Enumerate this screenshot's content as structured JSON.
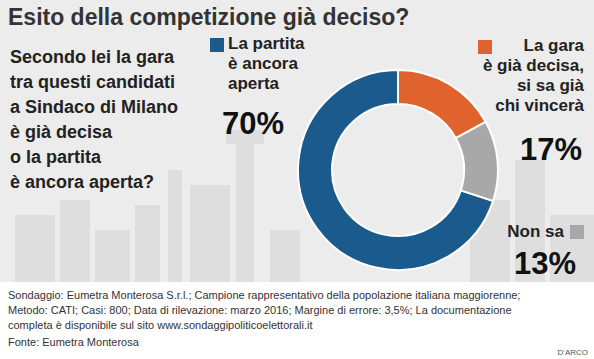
{
  "chart_data": {
    "type": "pie",
    "title": "Esito della competizione già deciso?",
    "subtitle": "Secondo lei la gara\ntra questi candidati\na Sindaco di Milano\nè già decisa\no la partita\nè ancora aperta?",
    "categories": [
      "La partita\nè ancora\naperta",
      "La gara\nè già decisa,\nsi sa già\nchi vincerà",
      "Non sa"
    ],
    "values": [
      70,
      17,
      13
    ],
    "value_labels": [
      "70%",
      "17%",
      "13%"
    ],
    "colors": [
      "#1b5a8c",
      "#e0622c",
      "#a8a8a8"
    ],
    "data_labels": true,
    "annotations": [
      "Sondaggio: Eumetra Monterosa S.r.l.; Campione rappresentativo della popolazione italiana maggiorenne;\nMetodo: CATI; Casi: 800; Data di rilevazione: marzo 2016; Margine di errore: 3,5%; La documentazione\ncompleta è disponibile sul sito www.sondaggipoliticoelettorali.it",
      "Fonte: Eumetra Monterosa",
      "D'ARCO"
    ]
  }
}
